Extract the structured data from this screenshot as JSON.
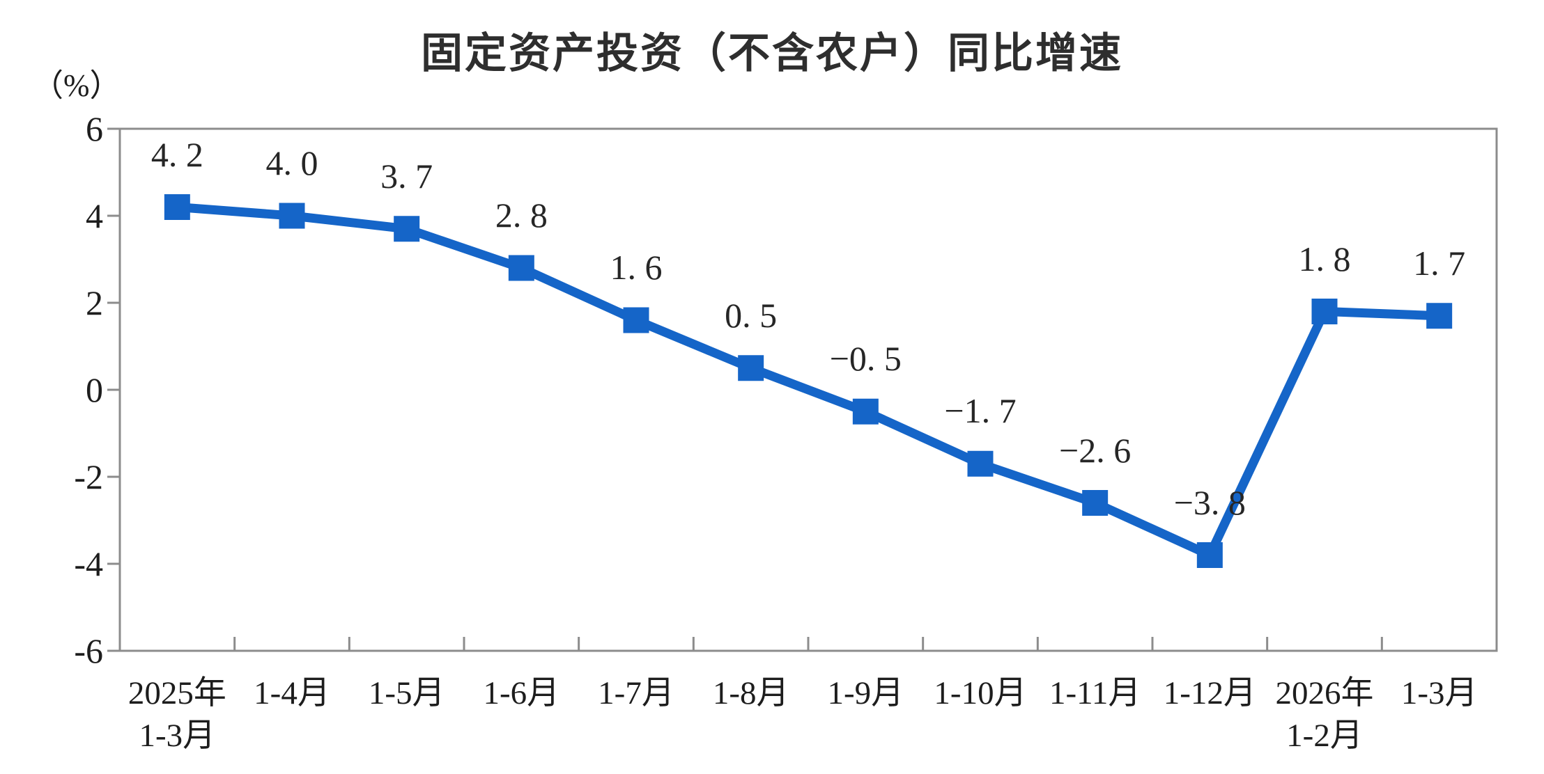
{
  "title": "固定资产投资（不含农户）同比增速",
  "chart_data": {
    "type": "line",
    "title": "固定资产投资（不含农户）同比增速",
    "ylabel": "（%）",
    "xlabel": "",
    "ylim": [
      -6,
      6
    ],
    "ytick_values": [
      6,
      4,
      2,
      0,
      -2,
      -4,
      -6
    ],
    "ytick_labels": [
      "6",
      "4",
      "2",
      "0",
      "-2",
      "-4",
      "-6"
    ],
    "categories": [
      [
        "2025年",
        "1-3月"
      ],
      [
        "1-4月"
      ],
      [
        "1-5月"
      ],
      [
        "1-6月"
      ],
      [
        "1-7月"
      ],
      [
        "1-8月"
      ],
      [
        "1-9月"
      ],
      [
        "1-10月"
      ],
      [
        "1-11月"
      ],
      [
        "1-12月"
      ],
      [
        "2026年",
        "1-2月"
      ],
      [
        "1-3月"
      ]
    ],
    "values": [
      4.2,
      4.0,
      3.7,
      2.8,
      1.6,
      0.5,
      -0.5,
      -1.7,
      -2.6,
      -3.8,
      1.8,
      1.7
    ],
    "point_labels": [
      "4. 2",
      "4. 0",
      "3. 7",
      "2. 8",
      "1. 6",
      "0. 5",
      "−0. 5",
      "−1. 7",
      "−2. 6",
      "−3. 8",
      "1. 8",
      "1. 7"
    ],
    "grid": false,
    "legend_position": "none",
    "marker": "square",
    "line_color": "#1565C8",
    "axis_color": "#8c8c8c",
    "label_color": "#262626"
  }
}
